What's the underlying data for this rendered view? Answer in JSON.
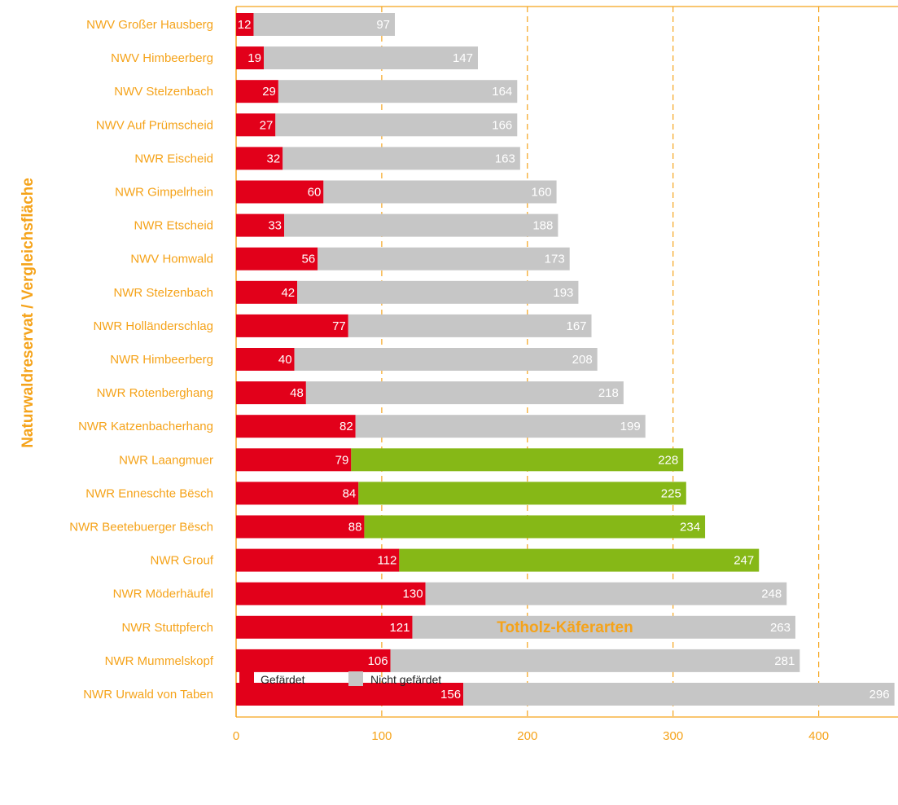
{
  "chart_data": {
    "type": "bar",
    "orientation": "horizontal",
    "stacked": true,
    "xlabel": "Totholz-Käferarten",
    "ylabel": "Naturwaldreservat / Vergleichsfläche",
    "xlim": [
      0,
      450
    ],
    "xticks": [
      0,
      100,
      200,
      300,
      400
    ],
    "grid": "vertical dashed",
    "legend_position": "bottom-left",
    "categories": [
      "NWV Großer Hausberg",
      "NWV Himbeerberg",
      "NWV Stelzenbach",
      "NWV Auf Prümscheid",
      "NWR Eischeid",
      "NWR Gimpelrhein",
      "NWR Etscheid",
      "NWV Homwald",
      "NWR Stelzenbach",
      "NWR Holländerschlag",
      "NWR Himbeerberg",
      "NWR Rotenberghang",
      "NWR Katzenbacherhang",
      "NWR Laangmuer",
      "NWR Enneschte Bësch",
      "NWR Beetebuerger Bësch",
      "NWR Grouf",
      "NWR Möderhäufel",
      "NWR Stuttpferch",
      "NWR Mummelskopf",
      "NWR Urwald von Taben"
    ],
    "series": [
      {
        "name": "Gefärdet",
        "color": "#e2001a",
        "values": [
          12,
          19,
          29,
          27,
          32,
          60,
          33,
          56,
          42,
          77,
          40,
          48,
          82,
          79,
          84,
          88,
          112,
          130,
          121,
          106,
          156
        ]
      },
      {
        "name": "Nicht gefärdet",
        "color": "#c6c6c6",
        "values": [
          97,
          147,
          164,
          166,
          163,
          160,
          188,
          173,
          193,
          167,
          208,
          218,
          199,
          228,
          225,
          234,
          247,
          248,
          263,
          281,
          296
        ]
      }
    ],
    "highlight_color": "#86b817",
    "highlighted_categories": [
      "NWR Laangmuer",
      "NWR Enneschte Bësch",
      "NWR Beetebuerger Bësch",
      "NWR Grouf"
    ],
    "colors": {
      "text": "#f5a31a",
      "grid": "#f5a31a",
      "label_inside": "#ffffff"
    }
  }
}
